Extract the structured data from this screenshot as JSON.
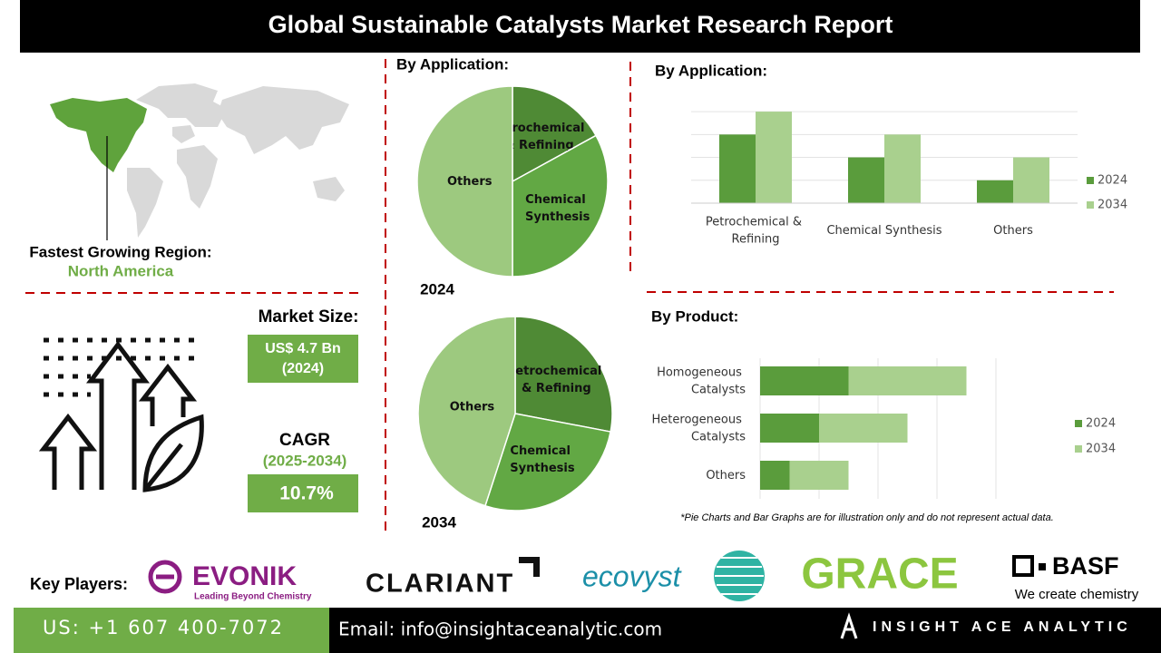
{
  "header": {
    "title": "Global Sustainable Catalysts Market Research Report"
  },
  "region": {
    "label": "Fastest Growing Region:",
    "value": "North America"
  },
  "market_size": {
    "label": "Market Size:",
    "value": "US$ 4.7 Bn",
    "year": "(2024)"
  },
  "cagr": {
    "label": "CAGR",
    "period": "(2025-2034)",
    "value": "10.7%"
  },
  "chart_data": [
    {
      "type": "pie",
      "title": "By Application:",
      "label": "2024",
      "categories": [
        "Petrochemical & Refining",
        "Chemical Synthesis",
        "Others"
      ],
      "values": [
        17,
        33,
        50
      ],
      "colors": [
        "#4f8a35",
        "#62a844",
        "#9dc97f"
      ]
    },
    {
      "type": "pie",
      "label": "2034",
      "categories": [
        "Petrochemical & Refining",
        "Chemical Synthesis",
        "Others"
      ],
      "values": [
        28,
        27,
        45
      ],
      "colors": [
        "#4f8a35",
        "#62a844",
        "#9dc97f"
      ]
    },
    {
      "type": "bar",
      "title": "By Application:",
      "categories": [
        "Petrochemical & Refining",
        "Chemical Synthesis",
        "Others"
      ],
      "series": [
        {
          "name": "2024",
          "color": "#5a9c3c",
          "values": [
            3,
            2,
            1
          ]
        },
        {
          "name": "2034",
          "color": "#a9d08e",
          "values": [
            4,
            3,
            2
          ]
        }
      ],
      "ylim": [
        0,
        4.4
      ],
      "yticks": [
        0,
        1,
        2,
        3,
        4
      ],
      "grid": true
    },
    {
      "type": "hbar",
      "title": "By Product:",
      "stacked": true,
      "categories": [
        "Homogeneous Catalysts",
        "Heterogeneous Catalysts",
        "Others"
      ],
      "series": [
        {
          "name": "2024",
          "color": "#5a9c3c",
          "values": [
            1.5,
            1,
            0.5
          ]
        },
        {
          "name": "2034",
          "color": "#a9d08e",
          "values": [
            2,
            1.5,
            1
          ]
        }
      ],
      "xlim": [
        0,
        4
      ],
      "xticks": [
        0,
        1,
        2,
        3,
        4
      ],
      "grid": true
    }
  ],
  "note": "*Pie Charts and Bar Graphs are for illustration only and do not represent actual data.",
  "key_players": {
    "label": "Key Players:",
    "evonik": "EVONIK",
    "evonik_tagline": "Leading Beyond Chemistry",
    "clariant": "CLARIANT",
    "ecovyst": "ecovyst",
    "grace": "GRACE",
    "basf": "BASF",
    "basf_tagline": "We create chemistry"
  },
  "footer": {
    "phone": "US: +1 607 400-7072",
    "email": "Email: info@insightaceanalytic.com",
    "brand": "INSIGHT ACE ANALYTIC"
  }
}
